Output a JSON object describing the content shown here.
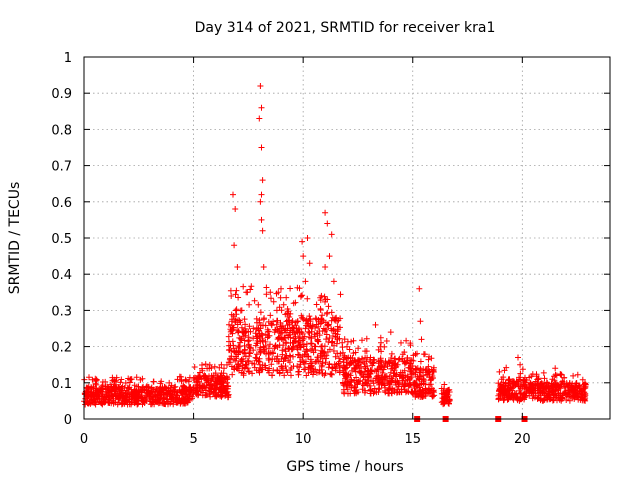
{
  "chart_data": {
    "type": "scatter",
    "title": "Day 314 of 2021, SRMTID for receiver kra1",
    "xlabel": "GPS time / hours",
    "ylabel": "SRMTID / TECUs",
    "xlim": [
      0,
      24
    ],
    "ylim": [
      0,
      1
    ],
    "xticks": [
      0,
      5,
      10,
      15,
      20
    ],
    "xtick_labels": [
      "0",
      "5",
      "10",
      "15",
      "20"
    ],
    "yticks": [
      0,
      0.1,
      0.2,
      0.3,
      0.4,
      0.5,
      0.6,
      0.7,
      0.8,
      0.9,
      1
    ],
    "ytick_labels": [
      "0",
      "0.1",
      "0.2",
      "0.3",
      "0.4",
      "0.5",
      "0.6",
      "0.7",
      "0.8",
      "0.9",
      "1"
    ],
    "grid": true,
    "marker": "+",
    "color": "#ff0000",
    "zero_markers": [
      15.2,
      16.5,
      18.9,
      20.1
    ],
    "series": [
      {
        "name": "SRMTID",
        "segments": [
          {
            "x_start": 0.0,
            "x_end": 5.0,
            "base": 0.065,
            "spread": 0.025
          },
          {
            "x_start": 5.0,
            "x_end": 6.6,
            "base": 0.09,
            "spread": 0.03
          },
          {
            "x_start": 6.6,
            "x_end": 9.3,
            "base": 0.2,
            "spread": 0.08
          },
          {
            "x_start": 9.3,
            "x_end": 11.8,
            "base": 0.2,
            "spread": 0.08
          },
          {
            "x_start": 11.8,
            "x_end": 15.0,
            "base": 0.12,
            "spread": 0.05
          },
          {
            "x_start": 15.0,
            "x_end": 16.0,
            "base": 0.1,
            "spread": 0.04
          },
          {
            "x_start": 16.3,
            "x_end": 16.7,
            "base": 0.06,
            "spread": 0.02
          },
          {
            "x_start": 18.9,
            "x_end": 20.3,
            "base": 0.08,
            "spread": 0.03
          },
          {
            "x_start": 20.3,
            "x_end": 22.9,
            "base": 0.075,
            "spread": 0.025
          }
        ],
        "peaks": [
          {
            "x": 6.8,
            "y": 0.62
          },
          {
            "x": 6.9,
            "y": 0.58
          },
          {
            "x": 6.85,
            "y": 0.48
          },
          {
            "x": 7.0,
            "y": 0.42
          },
          {
            "x": 7.4,
            "y": 0.35
          },
          {
            "x": 7.2,
            "y": 0.3
          },
          {
            "x": 8.05,
            "y": 0.92
          },
          {
            "x": 8.1,
            "y": 0.86
          },
          {
            "x": 8.0,
            "y": 0.83
          },
          {
            "x": 8.1,
            "y": 0.75
          },
          {
            "x": 8.15,
            "y": 0.66
          },
          {
            "x": 8.1,
            "y": 0.62
          },
          {
            "x": 8.05,
            "y": 0.6
          },
          {
            "x": 8.1,
            "y": 0.55
          },
          {
            "x": 8.15,
            "y": 0.52
          },
          {
            "x": 8.2,
            "y": 0.42
          },
          {
            "x": 8.5,
            "y": 0.35
          },
          {
            "x": 8.8,
            "y": 0.3
          },
          {
            "x": 9.95,
            "y": 0.49
          },
          {
            "x": 10.2,
            "y": 0.5
          },
          {
            "x": 10.0,
            "y": 0.45
          },
          {
            "x": 10.3,
            "y": 0.43
          },
          {
            "x": 10.1,
            "y": 0.38
          },
          {
            "x": 9.9,
            "y": 0.34
          },
          {
            "x": 11.0,
            "y": 0.57
          },
          {
            "x": 11.1,
            "y": 0.54
          },
          {
            "x": 11.3,
            "y": 0.51
          },
          {
            "x": 11.2,
            "y": 0.45
          },
          {
            "x": 11.0,
            "y": 0.42
          },
          {
            "x": 11.4,
            "y": 0.38
          },
          {
            "x": 11.1,
            "y": 0.33
          },
          {
            "x": 13.3,
            "y": 0.26
          },
          {
            "x": 14.0,
            "y": 0.24
          },
          {
            "x": 15.3,
            "y": 0.36
          },
          {
            "x": 15.35,
            "y": 0.27
          },
          {
            "x": 15.4,
            "y": 0.22
          },
          {
            "x": 19.8,
            "y": 0.17
          },
          {
            "x": 19.9,
            "y": 0.15
          },
          {
            "x": 21.5,
            "y": 0.14
          }
        ]
      }
    ]
  }
}
